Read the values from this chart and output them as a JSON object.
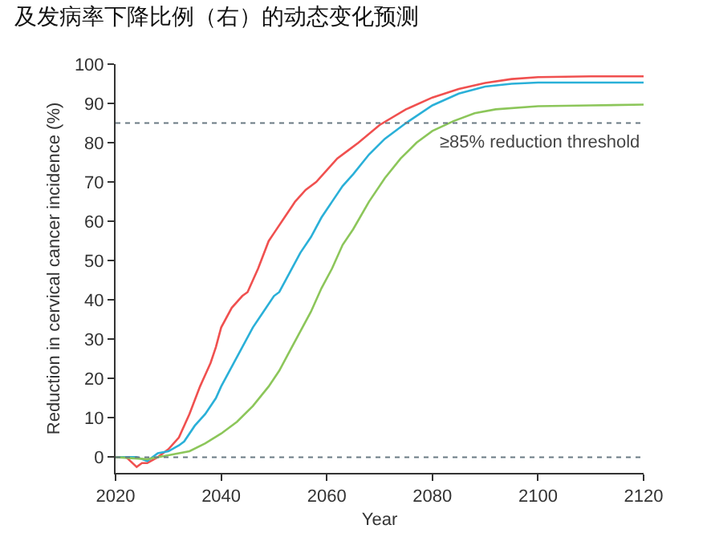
{
  "chart_data": {
    "type": "line",
    "title": "及发病率下降比例（右）的动态变化预测",
    "xlabel": "Year",
    "ylabel": "Reduction in cervical cancer incidence (%)",
    "xlim": [
      2020,
      2120
    ],
    "xticks": [
      2020,
      2040,
      2060,
      2080,
      2100,
      2120
    ],
    "ylim": [
      -4,
      100
    ],
    "yticks": [
      0,
      10,
      20,
      30,
      40,
      50,
      60,
      70,
      80,
      90,
      100
    ],
    "grid": false,
    "marker": "none",
    "line_style": "solid",
    "ref_lines": [
      {
        "axis": "y",
        "value": 85,
        "label": "≥85% reduction threshold",
        "color": "#6a7a84",
        "line_style": "dashed"
      },
      {
        "axis": "y",
        "value": 0,
        "label": null,
        "color": "#6a7a84",
        "line_style": "dashed"
      }
    ],
    "series": [
      {
        "color": "#f0504f",
        "x": [
          2020,
          2022,
          2024,
          2025,
          2026,
          2028,
          2030,
          2032,
          2034,
          2036,
          2038,
          2039,
          2040,
          2042,
          2044,
          2045,
          2047,
          2049,
          2050,
          2052,
          2054,
          2056,
          2058,
          2060,
          2062,
          2064,
          2066,
          2070,
          2075,
          2080,
          2085,
          2090,
          2095,
          2100,
          2110,
          2120
        ],
        "values": [
          0,
          0,
          -2.5,
          -1.5,
          -1.5,
          0,
          2,
          5,
          11,
          18,
          24,
          28,
          33,
          38,
          41,
          42,
          48,
          55,
          57,
          61,
          65,
          68,
          70,
          73,
          76,
          78,
          80,
          84.5,
          88.5,
          91.5,
          93.7,
          95.2,
          96.2,
          96.7,
          96.9,
          96.9
        ]
      },
      {
        "color": "#2ab0d8",
        "x": [
          2020,
          2024,
          2026,
          2028,
          2030,
          2032,
          2033,
          2035,
          2037,
          2039,
          2040,
          2042,
          2044,
          2046,
          2048,
          2050,
          2051,
          2053,
          2055,
          2057,
          2059,
          2061,
          2063,
          2065,
          2068,
          2071,
          2075,
          2080,
          2085,
          2090,
          2095,
          2100,
          2110,
          2120
        ],
        "values": [
          0,
          0,
          -1,
          1,
          1.5,
          3,
          4,
          8,
          11,
          15,
          18,
          23,
          28,
          33,
          37,
          41,
          42,
          47,
          52,
          56,
          61,
          65,
          69,
          72,
          77,
          81,
          85,
          89.5,
          92.5,
          94.3,
          95,
          95.3,
          95.3,
          95.3
        ]
      },
      {
        "color": "#8cc65a",
        "x": [
          2020,
          2026,
          2030,
          2034,
          2037,
          2040,
          2043,
          2046,
          2049,
          2051,
          2053,
          2055,
          2057,
          2059,
          2061,
          2063,
          2065,
          2068,
          2071,
          2074,
          2077,
          2080,
          2084,
          2088,
          2092,
          2100,
          2110,
          2120
        ],
        "values": [
          0,
          -0.5,
          0.5,
          1.5,
          3.5,
          6,
          9,
          13,
          18,
          22,
          27,
          32,
          37,
          43,
          48,
          54,
          58,
          65,
          71,
          76,
          80,
          83,
          85.5,
          87.5,
          88.5,
          89.3,
          89.5,
          89.7
        ]
      }
    ]
  }
}
